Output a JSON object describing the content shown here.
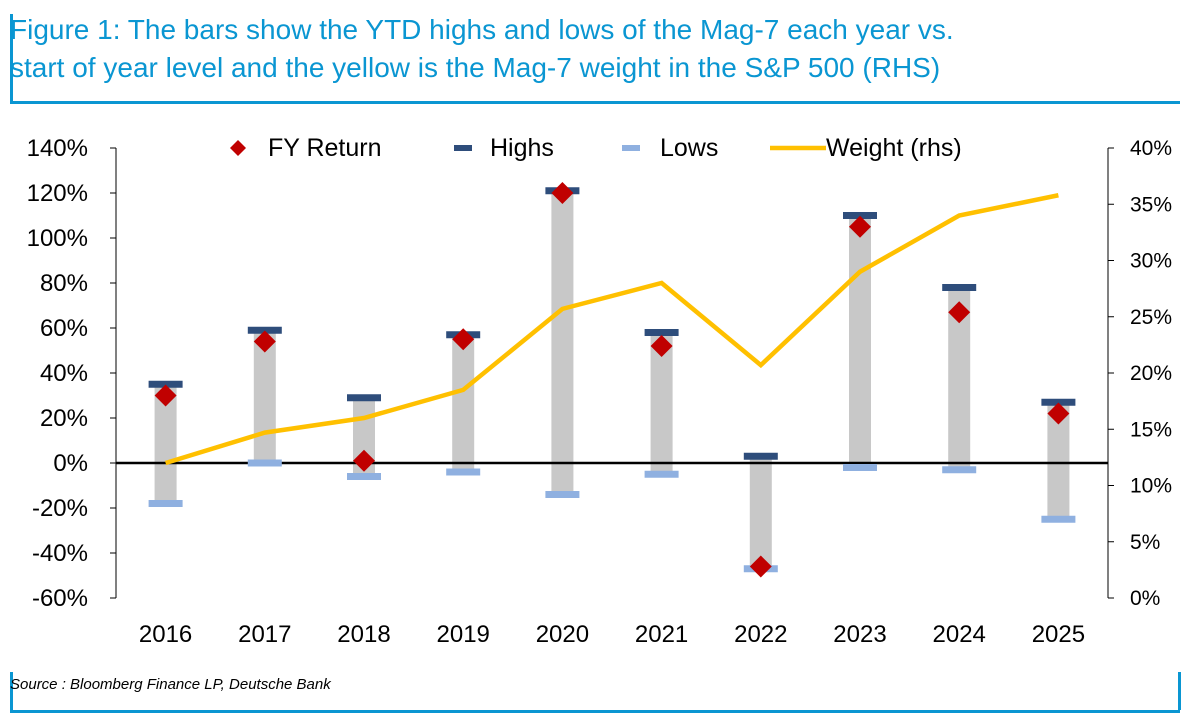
{
  "header": {
    "title_line1": "Figure 1: The bars show the YTD highs and lows of the Mag-7 each year vs.",
    "title_line2": "start of year level and the yellow is the Mag-7 weight in the S&P 500 (RHS)"
  },
  "footer": {
    "source": "Source : Bloomberg Finance LP, Deutsche Bank"
  },
  "colors": {
    "accent": "#0a96d2",
    "bar": "#c8c8c8",
    "highs": "#2e4d7b",
    "lows": "#8fb0e0",
    "fy_return": "#c00000",
    "weight": "#ffc000"
  },
  "chart_data": {
    "type": "bar",
    "categories": [
      "2016",
      "2017",
      "2018",
      "2019",
      "2020",
      "2021",
      "2022",
      "2023",
      "2024",
      "2025"
    ],
    "series": [
      {
        "name": "FY Return",
        "values": [
          30,
          54,
          1,
          55,
          120,
          52,
          -46,
          105,
          67,
          22
        ]
      },
      {
        "name": "Highs",
        "values": [
          35,
          59,
          29,
          57,
          121,
          58,
          3,
          110,
          78,
          27
        ]
      },
      {
        "name": "Lows",
        "values": [
          -18,
          0,
          -6,
          -4,
          -14,
          -5,
          -47,
          -2,
          -3,
          -25
        ]
      },
      {
        "name": "Weight (rhs)",
        "axis": "right",
        "values": [
          12,
          14.7,
          16,
          18.5,
          25.7,
          28,
          20.7,
          29,
          34,
          35.8
        ]
      }
    ],
    "legend": [
      "FY Return",
      "Highs",
      "Lows",
      "Weight (rhs)"
    ],
    "y_left": {
      "min": -60,
      "max": 140,
      "step": 20,
      "ticks": [
        "140%",
        "120%",
        "100%",
        "80%",
        "60%",
        "40%",
        "20%",
        "0%",
        "-20%",
        "-40%",
        "-60%"
      ]
    },
    "y_right": {
      "min": 0,
      "max": 40,
      "step": 5,
      "ticks": [
        "40%",
        "35%",
        "30%",
        "25%",
        "20%",
        "15%",
        "10%",
        "5%",
        "0%"
      ]
    },
    "legend_position": "top"
  }
}
